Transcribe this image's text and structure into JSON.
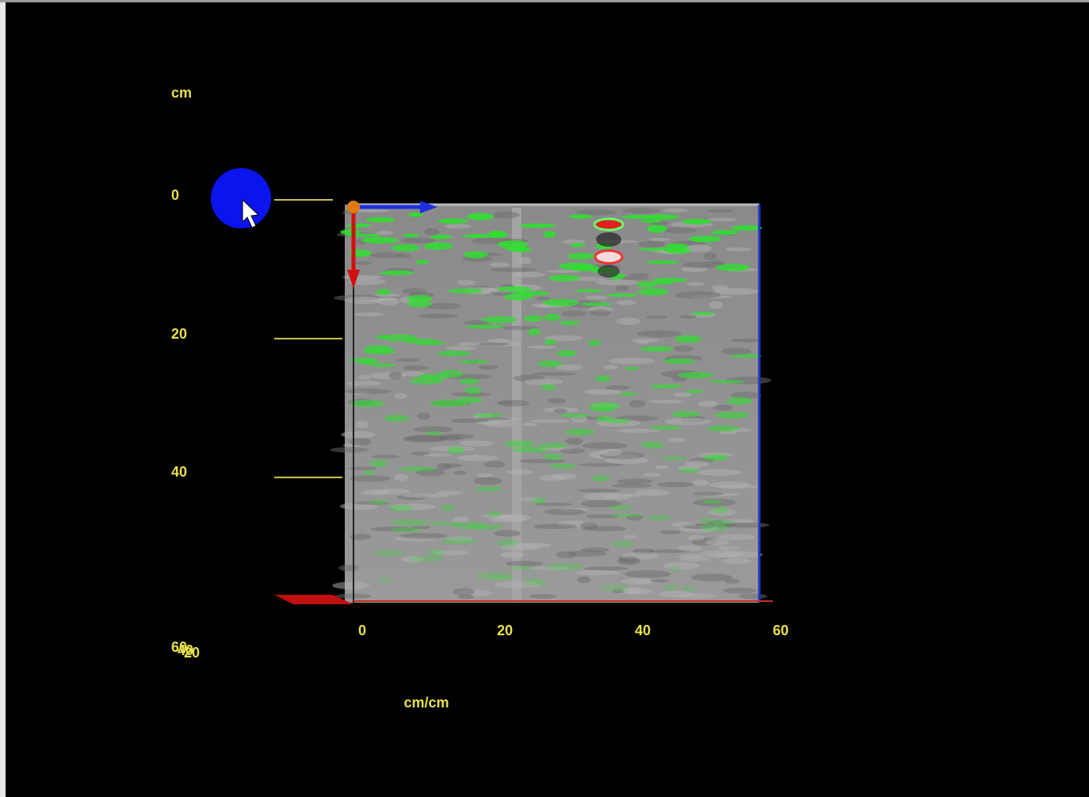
{
  "vertical_axis": {
    "unit": "cm",
    "ticks": [
      "0",
      "20",
      "40"
    ]
  },
  "horizontal_axis": {
    "unit": "cm/cm",
    "ticks": [
      "0",
      "20",
      "40",
      "60"
    ]
  },
  "overlapping_labels": [
    "60",
    "40",
    "20"
  ]
}
